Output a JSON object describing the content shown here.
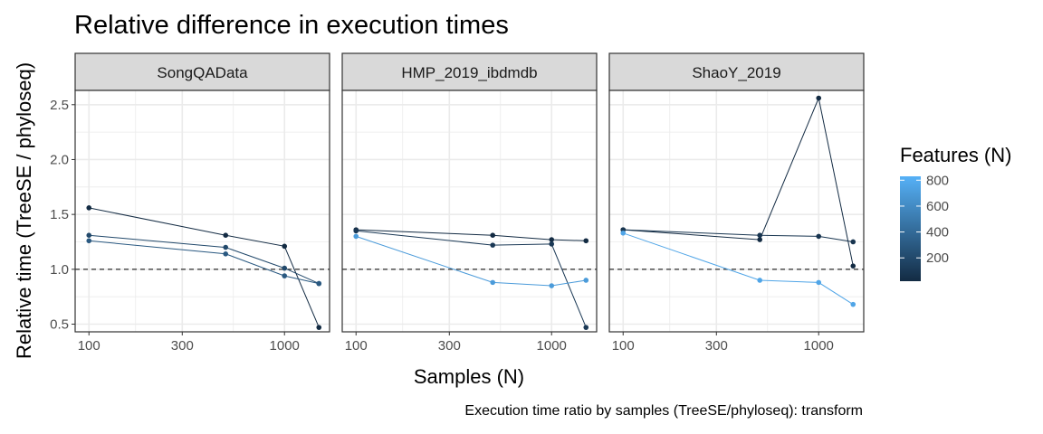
{
  "chart_data": {
    "type": "line",
    "title": "Relative difference in execution times",
    "xlabel": "Samples (N)",
    "ylabel": "Relative time (TreeSE / phyloseq)",
    "caption": "Execution time ratio by samples (TreeSE/phyloseq):  transform",
    "x_scale": "log10",
    "xlim": [
      85,
      1700
    ],
    "ylim": [
      0.43,
      2.63
    ],
    "x_ticks": [
      100,
      300,
      1000
    ],
    "x_tick_labels": [
      "100",
      "300",
      "1000"
    ],
    "y_ticks": [
      0.5,
      1.0,
      1.5,
      2.0,
      2.5
    ],
    "y_tick_labels": [
      "0.5",
      "1.0",
      "1.5",
      "2.0",
      "2.5"
    ],
    "reference_line": {
      "y": 1.0,
      "style": "dashed"
    },
    "grid": true,
    "legend": {
      "title": "Features (N)",
      "type": "colorbar",
      "placement": "right",
      "min": 20,
      "max": 830,
      "ticks": [
        200,
        400,
        600,
        800
      ],
      "tick_labels": [
        "200",
        "400",
        "600",
        "800"
      ],
      "color_low": "#132B43",
      "color_high": "#56B1F7"
    },
    "panels": [
      {
        "label": "SongQAData",
        "series": [
          {
            "features": 20,
            "x": [
              100,
              500,
              1000,
              1500
            ],
            "y": [
              1.56,
              1.31,
              1.21,
              0.47
            ]
          },
          {
            "features": 200,
            "x": [
              100,
              500,
              1000,
              1500
            ],
            "y": [
              1.31,
              1.2,
              1.01,
              0.87
            ]
          },
          {
            "features": 300,
            "x": [
              100,
              500,
              1000,
              1500
            ],
            "y": [
              1.26,
              1.14,
              0.94,
              0.87
            ]
          }
        ]
      },
      {
        "label": "HMP_2019_ibdmdb",
        "series": [
          {
            "features": 20,
            "x": [
              100,
              500,
              1000,
              1500
            ],
            "y": [
              1.36,
              1.31,
              1.27,
              1.26
            ]
          },
          {
            "features": 100,
            "x": [
              100,
              500,
              1000,
              1500
            ],
            "y": [
              1.35,
              1.22,
              1.23,
              0.47
            ]
          },
          {
            "features": 700,
            "x": [
              100,
              500,
              1000,
              1500
            ],
            "y": [
              1.3,
              0.88,
              0.85,
              0.9
            ]
          }
        ]
      },
      {
        "label": "ShaoY_2019",
        "series": [
          {
            "features": 20,
            "x": [
              100,
              500,
              1000,
              1500
            ],
            "y": [
              1.36,
              1.27,
              2.56,
              1.03
            ]
          },
          {
            "features": 80,
            "x": [
              100,
              500,
              1000,
              1500
            ],
            "y": [
              1.36,
              1.31,
              1.3,
              1.25
            ]
          },
          {
            "features": 760,
            "x": [
              100,
              500,
              1000,
              1500
            ],
            "y": [
              1.33,
              0.9,
              0.88,
              0.68
            ]
          }
        ]
      }
    ]
  }
}
